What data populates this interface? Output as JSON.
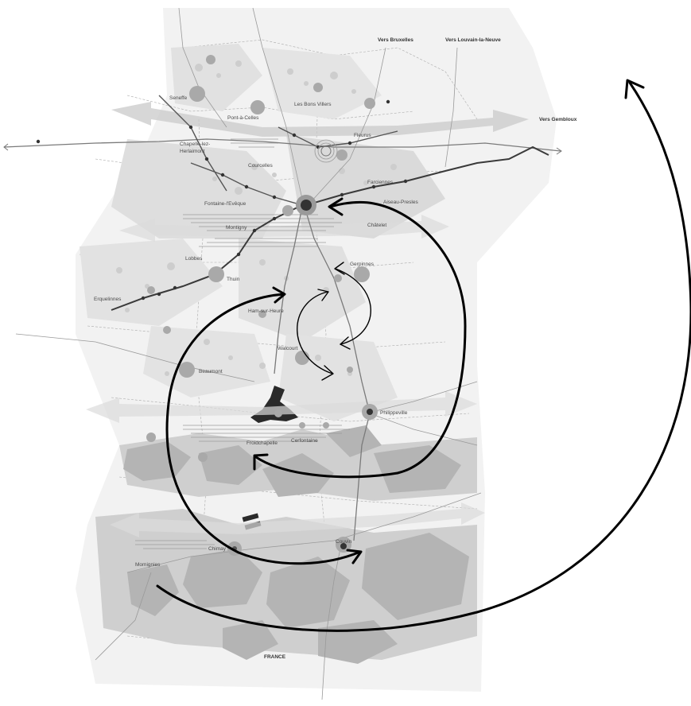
{
  "map": {
    "labels": {
      "vers_bruxelles": "Vers Bruxelles",
      "vers_louvain": "Vers Louvain-la-Neuve",
      "vers_gembloux": "Vers Gembloux",
      "france": "FRANCE",
      "seneffe": "Seneffe",
      "pont_a_celles": "Pont-à-Celles",
      "les_bons_villers": "Les Bons Villers",
      "fleurus": "Fleurus",
      "chapelle": "Chapelle-lez-",
      "herlaimont": "Herlaimont",
      "courcelles": "Courcelles",
      "farciennes": "Farciennes",
      "aiseau_presles": "Aiseau-Presles",
      "fontaine": "Fontaine-l'Evêque",
      "montigny": "Montigny",
      "chatelet": "Châtelet",
      "gerpinnes": "Gerpinnes",
      "lobbes": "Lobbes",
      "thuin": "Thuin",
      "erquelinnes": "Erquelinnes",
      "ham_sur_heure": "Ham-sur-Heure",
      "beaumont": "Beaumont",
      "walcourt": "Walcourt",
      "philippeville": "Philippeville",
      "froidchapelle": "Froidchapelle",
      "cerfontaine": "Cerfontaine",
      "chimay": "Chimay",
      "couvin": "Couvin",
      "momignies": "Momignies"
    },
    "colors": {
      "arrow": "#000000",
      "corridor": "#c9c9c9",
      "forest": "#b4b4b4",
      "background": "#ffffff"
    }
  }
}
